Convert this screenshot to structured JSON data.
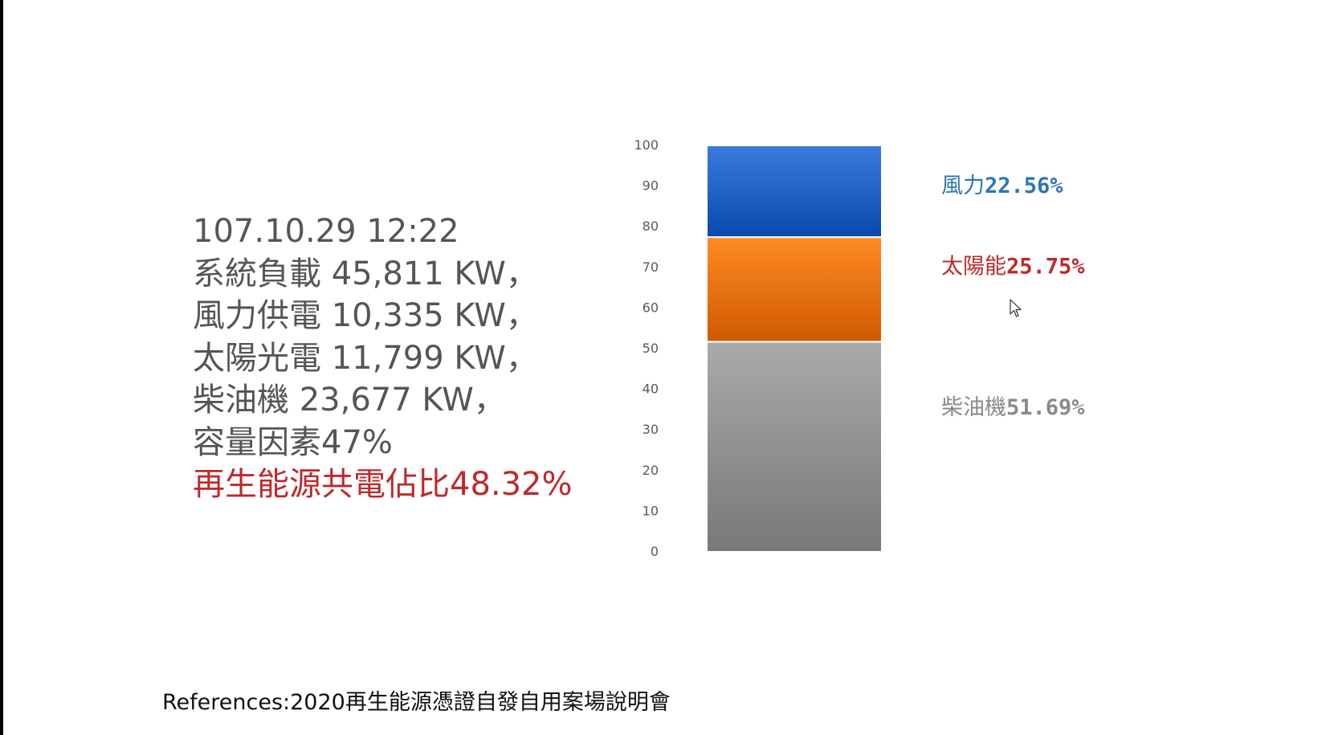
{
  "stats": {
    "lines": [
      "107.10.29 12:22",
      "系統負載 45,811 KW，",
      "風力供電 10,335 KW，",
      "太陽光電 11,799 KW，",
      "柴油機 23,677 KW，",
      "容量因素47%"
    ],
    "highlight": "再生能源共電佔比48.32%"
  },
  "reference": "References:2020再生能源憑證自發自用案場說明會",
  "colors": {
    "wind": "#2e6fd4",
    "solar": "#f57f17",
    "diesel": "#9e9e9e",
    "wind_label": "#2e75b6",
    "solar_label": "#c0282b",
    "diesel_label": "#8a8a8a",
    "highlight": "#c0282b"
  },
  "chart_data": {
    "type": "bar",
    "stacked": true,
    "categories": [
      ""
    ],
    "ylim": [
      0,
      100
    ],
    "yticks": [
      0,
      10,
      20,
      30,
      40,
      50,
      60,
      70,
      80,
      90,
      100
    ],
    "grid": false,
    "legend_position": "right",
    "series": [
      {
        "name": "柴油機",
        "values": [
          51.69
        ],
        "label": "51.69%",
        "color": "#9e9e9e"
      },
      {
        "name": "太陽能",
        "values": [
          25.75
        ],
        "label": "25.75%",
        "color": "#f57f17"
      },
      {
        "name": "風力",
        "values": [
          22.56
        ],
        "label": "22.56%",
        "color": "#2e6fd4"
      }
    ]
  }
}
